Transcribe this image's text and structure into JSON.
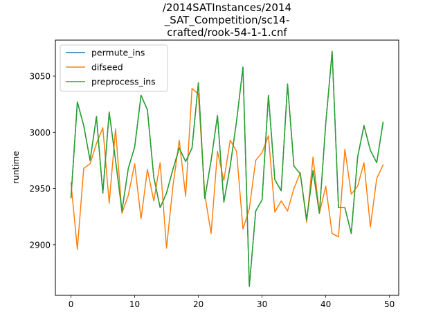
{
  "chart_data": {
    "type": "line",
    "title": [
      "/2014SATInstances/2014",
      "_SAT_Competition/sc14-",
      "crafted/rook-54-1-1.cnf"
    ],
    "xlabel": "",
    "ylabel": "runtime",
    "xlim": [
      -2.45,
      51.45
    ],
    "ylim": [
      2855,
      3082
    ],
    "xticks": [
      0,
      10,
      20,
      30,
      40,
      50
    ],
    "yticks": [
      2900,
      2950,
      3000,
      3050
    ],
    "grid": false,
    "legend_position": "top-left",
    "x": [
      0,
      1,
      2,
      3,
      4,
      5,
      6,
      7,
      8,
      9,
      10,
      11,
      12,
      13,
      14,
      15,
      16,
      17,
      18,
      19,
      20,
      21,
      22,
      23,
      24,
      25,
      26,
      27,
      28,
      29,
      30,
      31,
      32,
      33,
      34,
      35,
      36,
      37,
      38,
      39,
      40,
      41,
      42,
      43,
      44,
      45,
      46,
      47,
      48,
      49
    ],
    "series": [
      {
        "name": "permute_ins",
        "color": "#1f77b4",
        "values": [
          2942,
          3027,
          3006,
          2975,
          3014,
          2946,
          3018,
          2975,
          2930,
          2968,
          2987,
          3033,
          3020,
          2960,
          2933,
          2946,
          2967,
          2986,
          2974,
          2986,
          3044,
          2941,
          2975,
          3015,
          2938,
          2970,
          3010,
          3058,
          2863,
          2930,
          2940,
          3033,
          2958,
          2948,
          3043,
          2970,
          2963,
          2922,
          2966,
          2928,
          3008,
          3072,
          2933,
          2933,
          2910,
          2978,
          3006,
          2984,
          2973,
          3009
        ]
      },
      {
        "name": "difseed",
        "color": "#ff7f0e",
        "values": [
          2955,
          2896,
          2968,
          2972,
          2990,
          3004,
          2937,
          3003,
          2928,
          2944,
          2972,
          2923,
          2967,
          2939,
          2973,
          2897,
          2952,
          2993,
          2943,
          3039,
          3034,
          2945,
          2910,
          2983,
          2957,
          2993,
          2983,
          2914,
          2932,
          2975,
          2982,
          2997,
          2929,
          2939,
          2930,
          2950,
          2964,
          2920,
          2978,
          2928,
          2952,
          2910,
          2907,
          2985,
          2945,
          2952,
          2973,
          2916,
          2959,
          2971
        ]
      },
      {
        "name": "preprocess_ins",
        "color": "#2ca02c",
        "values": [
          2942,
          3027,
          3006,
          2975,
          3014,
          2946,
          3018,
          2975,
          2930,
          2968,
          2987,
          3033,
          3020,
          2960,
          2933,
          2946,
          2967,
          2986,
          2974,
          2986,
          3044,
          2941,
          2975,
          3015,
          2938,
          2970,
          3010,
          3058,
          2863,
          2930,
          2940,
          3033,
          2958,
          2948,
          3043,
          2970,
          2963,
          2922,
          2966,
          2928,
          3008,
          3072,
          2933,
          2933,
          2910,
          2978,
          3006,
          2984,
          2973,
          3009
        ]
      }
    ]
  }
}
